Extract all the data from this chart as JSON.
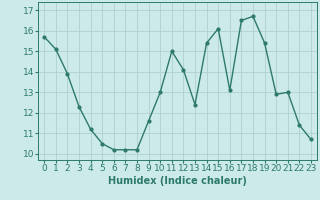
{
  "x": [
    0,
    1,
    2,
    3,
    4,
    5,
    6,
    7,
    8,
    9,
    10,
    11,
    12,
    13,
    14,
    15,
    16,
    17,
    18,
    19,
    20,
    21,
    22,
    23
  ],
  "y": [
    15.7,
    15.1,
    13.9,
    12.3,
    11.2,
    10.5,
    10.2,
    10.2,
    10.2,
    11.6,
    13.0,
    15.0,
    14.1,
    12.4,
    15.4,
    16.1,
    13.1,
    16.5,
    16.7,
    15.4,
    12.9,
    13.0,
    11.4,
    10.7
  ],
  "line_color": "#2d7a6b",
  "marker": "o",
  "marker_size": 2.0,
  "line_width": 1.0,
  "bg_color": "#cdeaea",
  "grid_color": "#b0d0d0",
  "xlabel": "Humidex (Indice chaleur)",
  "xlabel_fontsize": 7,
  "ylabel_ticks": [
    10,
    11,
    12,
    13,
    14,
    15,
    16,
    17
  ],
  "xlim": [
    -0.5,
    23.5
  ],
  "ylim": [
    9.7,
    17.4
  ],
  "tick_fontsize": 6.5
}
